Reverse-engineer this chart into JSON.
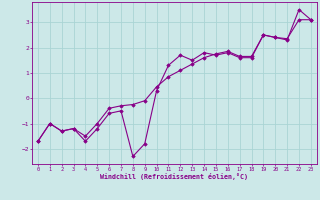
{
  "xlabel": "Windchill (Refroidissement éolien,°C)",
  "background_color": "#cce8e8",
  "grid_color": "#aad4d4",
  "line_color": "#880088",
  "xlim": [
    -0.5,
    23.5
  ],
  "ylim": [
    -2.6,
    3.8
  ],
  "xticks": [
    0,
    1,
    2,
    3,
    4,
    5,
    6,
    7,
    8,
    9,
    10,
    11,
    12,
    13,
    14,
    15,
    16,
    17,
    18,
    19,
    20,
    21,
    22,
    23
  ],
  "yticks": [
    -2,
    -1,
    0,
    1,
    2,
    3
  ],
  "line1_x": [
    0,
    1,
    2,
    3,
    4,
    5,
    6,
    7,
    8,
    9,
    10,
    11,
    12,
    13,
    14,
    15,
    16,
    17,
    18,
    19,
    20,
    21,
    22,
    23
  ],
  "line1_y": [
    -1.7,
    -1.0,
    -1.3,
    -1.2,
    -1.7,
    -1.2,
    -0.6,
    -0.5,
    -2.3,
    -1.8,
    0.3,
    1.3,
    1.7,
    1.5,
    1.8,
    1.7,
    1.8,
    1.6,
    1.6,
    2.5,
    2.4,
    2.3,
    3.5,
    3.1
  ],
  "line2_x": [
    0,
    1,
    2,
    3,
    4,
    5,
    6,
    7,
    8,
    9,
    10,
    11,
    12,
    13,
    14,
    15,
    16,
    17,
    18,
    19,
    20,
    21,
    22,
    23
  ],
  "line2_y": [
    -1.7,
    -1.0,
    -1.3,
    -1.2,
    -1.5,
    -1.0,
    -0.4,
    -0.3,
    -0.25,
    -0.1,
    0.45,
    0.85,
    1.1,
    1.35,
    1.6,
    1.75,
    1.85,
    1.65,
    1.65,
    2.5,
    2.4,
    2.35,
    3.1,
    3.1
  ]
}
